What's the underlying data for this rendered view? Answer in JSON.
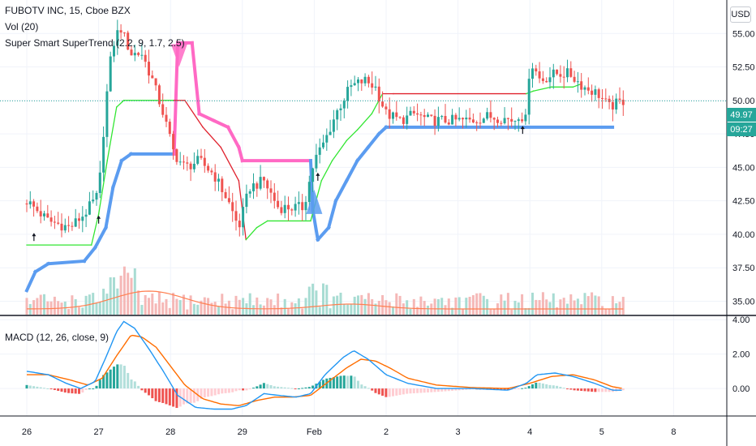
{
  "header": {
    "symbol_line": "FUBOTV INC, 15, Cboe BZX",
    "volume_indicator": "Vol (20)",
    "supertrend_indicator": "Super Smart SuperTrend (2.2, 9, 1.7, 2.5)",
    "macd_indicator": "MACD (12, 26, close, 9)"
  },
  "currency_button": "USD",
  "last_price_tag": {
    "price": "49.97",
    "countdown": "09:27"
  },
  "colors": {
    "up": "#26a69a",
    "down": "#ef5350",
    "supertrend_fast_up": "#32e632",
    "supertrend_fast_down": "#e0222e",
    "supertrend_slow_up": "#5b9cf0",
    "supertrend_slow_down": "#ff69c4",
    "macd_line": "#2196f3",
    "signal_line": "#ff6d00",
    "volume_ma": "#ff7f50",
    "price_tag_bg": "#26a69a"
  },
  "chart_data": [
    {
      "type": "candlestick",
      "pane": "price",
      "x_ticks": [
        "26",
        "27",
        "28",
        "29",
        "Feb",
        "2",
        "3",
        "4",
        "5",
        "8"
      ],
      "y_ticks": [
        35.0,
        37.5,
        40.0,
        42.5,
        45.0,
        47.5,
        50.0,
        52.5,
        55.0
      ],
      "y_tick_labels": [
        "35.00",
        "37.50",
        "40.00",
        "42.50",
        "45.00",
        "47.50",
        "50.00",
        "52.50",
        "55.00"
      ],
      "ylim": [
        34.0,
        57.5
      ],
      "close_path": [
        {
          "x": 0.0,
          "y": 42.5
        },
        {
          "x": 0.3,
          "y": 41.0
        },
        {
          "x": 0.6,
          "y": 40.5
        },
        {
          "x": 0.8,
          "y": 41.5
        },
        {
          "x": 1.0,
          "y": 43.0
        },
        {
          "x": 1.08,
          "y": 48.5
        },
        {
          "x": 1.15,
          "y": 52.5
        },
        {
          "x": 1.22,
          "y": 54.5
        },
        {
          "x": 1.3,
          "y": 55.5
        },
        {
          "x": 1.45,
          "y": 53.5
        },
        {
          "x": 1.6,
          "y": 53.5
        },
        {
          "x": 1.75,
          "y": 51.5
        },
        {
          "x": 1.9,
          "y": 49.0
        },
        {
          "x": 2.05,
          "y": 46.0
        },
        {
          "x": 2.2,
          "y": 45.0
        },
        {
          "x": 2.4,
          "y": 45.5
        },
        {
          "x": 2.6,
          "y": 44.5
        },
        {
          "x": 2.8,
          "y": 42.5
        },
        {
          "x": 2.95,
          "y": 40.5
        },
        {
          "x": 3.1,
          "y": 43.5
        },
        {
          "x": 3.3,
          "y": 44.0
        },
        {
          "x": 3.5,
          "y": 42.0
        },
        {
          "x": 3.7,
          "y": 42.0
        },
        {
          "x": 3.85,
          "y": 42.0
        },
        {
          "x": 4.0,
          "y": 45.5
        },
        {
          "x": 4.15,
          "y": 47.0
        },
        {
          "x": 4.3,
          "y": 49.0
        },
        {
          "x": 4.5,
          "y": 51.0
        },
        {
          "x": 4.7,
          "y": 51.5
        },
        {
          "x": 4.85,
          "y": 51.0
        },
        {
          "x": 5.0,
          "y": 49.0
        },
        {
          "x": 5.2,
          "y": 48.5
        },
        {
          "x": 5.4,
          "y": 49.0
        },
        {
          "x": 5.6,
          "y": 48.5
        },
        {
          "x": 5.8,
          "y": 48.5
        },
        {
          "x": 6.0,
          "y": 48.5
        },
        {
          "x": 6.2,
          "y": 48.5
        },
        {
          "x": 6.4,
          "y": 48.8
        },
        {
          "x": 6.6,
          "y": 48.7
        },
        {
          "x": 6.78,
          "y": 48.5
        },
        {
          "x": 6.85,
          "y": 49.0
        },
        {
          "x": 6.95,
          "y": 48.5
        },
        {
          "x": 7.0,
          "y": 53.0
        },
        {
          "x": 7.15,
          "y": 51.5
        },
        {
          "x": 7.35,
          "y": 52.0
        },
        {
          "x": 7.55,
          "y": 52.0
        },
        {
          "x": 7.75,
          "y": 51.0
        },
        {
          "x": 7.95,
          "y": 50.5
        },
        {
          "x": 8.1,
          "y": 49.5
        },
        {
          "x": 8.3,
          "y": 49.97
        }
      ],
      "supertrend_fast": [
        {
          "x": 0.0,
          "y": 39.2
        },
        {
          "x": 0.9,
          "y": 39.2
        },
        {
          "x": 1.0,
          "y": 41.5
        },
        {
          "x": 1.12,
          "y": 45.5
        },
        {
          "x": 1.25,
          "y": 49.5
        },
        {
          "x": 1.35,
          "y": 50.0
        },
        {
          "x": 2.05,
          "y": 50.0
        },
        {
          "x": 2.2,
          "y": 50.0
        },
        {
          "x": 2.45,
          "y": 48.0
        },
        {
          "x": 2.7,
          "y": 46.5
        },
        {
          "x": 2.95,
          "y": 44.0
        },
        {
          "x": 3.05,
          "y": 39.6
        },
        {
          "x": 3.2,
          "y": 40.5
        },
        {
          "x": 3.35,
          "y": 41.0
        },
        {
          "x": 3.95,
          "y": 41.0
        },
        {
          "x": 4.1,
          "y": 44.0
        },
        {
          "x": 4.25,
          "y": 45.5
        },
        {
          "x": 4.45,
          "y": 47.0
        },
        {
          "x": 4.6,
          "y": 47.8
        },
        {
          "x": 4.8,
          "y": 49.0
        },
        {
          "x": 4.95,
          "y": 50.5
        },
        {
          "x": 5.1,
          "y": 50.5
        },
        {
          "x": 6.95,
          "y": 50.5
        },
        {
          "x": 7.05,
          "y": 50.7
        },
        {
          "x": 7.3,
          "y": 51.0
        },
        {
          "x": 7.6,
          "y": 51.0
        },
        {
          "x": 7.7,
          "y": 51.2
        }
      ],
      "supertrend_slow": [
        {
          "x": 0.0,
          "y": 35.8
        },
        {
          "x": 0.12,
          "y": 37.2
        },
        {
          "x": 0.3,
          "y": 37.8
        },
        {
          "x": 0.8,
          "y": 38.0
        },
        {
          "x": 0.95,
          "y": 39.0
        },
        {
          "x": 1.1,
          "y": 40.5
        },
        {
          "x": 1.2,
          "y": 43.5
        },
        {
          "x": 1.32,
          "y": 45.5
        },
        {
          "x": 1.45,
          "y": 46.0
        },
        {
          "x": 2.05,
          "y": 46.0
        },
        {
          "x": 2.1,
          "y": 54.3
        },
        {
          "x": 2.3,
          "y": 54.3
        },
        {
          "x": 2.4,
          "y": 49.0
        },
        {
          "x": 2.6,
          "y": 48.5
        },
        {
          "x": 2.8,
          "y": 48.0
        },
        {
          "x": 2.95,
          "y": 46.5
        },
        {
          "x": 3.0,
          "y": 45.5
        },
        {
          "x": 3.95,
          "y": 45.5
        },
        {
          "x": 3.98,
          "y": 41.8
        },
        {
          "x": 4.05,
          "y": 39.6
        },
        {
          "x": 4.2,
          "y": 40.5
        },
        {
          "x": 4.3,
          "y": 42.5
        },
        {
          "x": 4.45,
          "y": 44.0
        },
        {
          "x": 4.6,
          "y": 45.5
        },
        {
          "x": 4.75,
          "y": 46.5
        },
        {
          "x": 4.9,
          "y": 47.5
        },
        {
          "x": 5.0,
          "y": 48.0
        },
        {
          "x": 8.15,
          "y": 48.0
        }
      ],
      "supertrend_flip_markers": [
        {
          "x": 2.12,
          "y": 52.5,
          "direction": "down"
        },
        {
          "x": 4.0,
          "y": 42.0,
          "direction": "up"
        }
      ],
      "arrows": [
        {
          "x": 0.1,
          "y": 39.5
        },
        {
          "x": 1.0,
          "y": 40.8
        },
        {
          "x": 4.05,
          "y": 44.0
        },
        {
          "x": 6.9,
          "y": 47.5
        }
      ],
      "grid": true
    },
    {
      "type": "histogram+line",
      "pane": "macd",
      "y_ticks": [
        0.0,
        2.0,
        4.0
      ],
      "y_tick_labels": [
        "0.00",
        "2.00",
        "4.00"
      ],
      "ylim": [
        -1.6,
        4.2
      ],
      "macd_line": [
        {
          "x": 0.0,
          "y": 1.0
        },
        {
          "x": 0.3,
          "y": 0.8
        },
        {
          "x": 0.55,
          "y": 0.3
        },
        {
          "x": 0.75,
          "y": 0.0
        },
        {
          "x": 0.95,
          "y": 0.4
        },
        {
          "x": 1.1,
          "y": 1.8
        },
        {
          "x": 1.25,
          "y": 3.3
        },
        {
          "x": 1.35,
          "y": 3.9
        },
        {
          "x": 1.5,
          "y": 3.5
        },
        {
          "x": 1.7,
          "y": 2.3
        },
        {
          "x": 1.9,
          "y": 1.0
        },
        {
          "x": 2.1,
          "y": -0.4
        },
        {
          "x": 2.35,
          "y": -1.1
        },
        {
          "x": 2.6,
          "y": -1.2
        },
        {
          "x": 2.85,
          "y": -1.2
        },
        {
          "x": 3.05,
          "y": -1.0
        },
        {
          "x": 3.3,
          "y": -0.3
        },
        {
          "x": 3.5,
          "y": -0.4
        },
        {
          "x": 3.75,
          "y": -0.5
        },
        {
          "x": 3.95,
          "y": -0.3
        },
        {
          "x": 4.15,
          "y": 0.8
        },
        {
          "x": 4.4,
          "y": 1.8
        },
        {
          "x": 4.55,
          "y": 2.2
        },
        {
          "x": 4.75,
          "y": 1.7
        },
        {
          "x": 5.0,
          "y": 0.8
        },
        {
          "x": 5.3,
          "y": 0.3
        },
        {
          "x": 5.7,
          "y": 0.0
        },
        {
          "x": 6.2,
          "y": 0.0
        },
        {
          "x": 6.7,
          "y": -0.1
        },
        {
          "x": 6.95,
          "y": 0.3
        },
        {
          "x": 7.1,
          "y": 0.8
        },
        {
          "x": 7.35,
          "y": 0.9
        },
        {
          "x": 7.6,
          "y": 0.7
        },
        {
          "x": 7.9,
          "y": 0.3
        },
        {
          "x": 8.15,
          "y": -0.1
        },
        {
          "x": 8.3,
          "y": -0.1
        }
      ],
      "signal_line": [
        {
          "x": 0.0,
          "y": 0.8
        },
        {
          "x": 0.3,
          "y": 0.8
        },
        {
          "x": 0.6,
          "y": 0.5
        },
        {
          "x": 0.85,
          "y": 0.2
        },
        {
          "x": 1.05,
          "y": 0.6
        },
        {
          "x": 1.25,
          "y": 1.9
        },
        {
          "x": 1.45,
          "y": 3.1
        },
        {
          "x": 1.6,
          "y": 3.0
        },
        {
          "x": 1.8,
          "y": 2.4
        },
        {
          "x": 2.0,
          "y": 1.3
        },
        {
          "x": 2.2,
          "y": 0.2
        },
        {
          "x": 2.45,
          "y": -0.6
        },
        {
          "x": 2.7,
          "y": -0.9
        },
        {
          "x": 2.95,
          "y": -1.0
        },
        {
          "x": 3.2,
          "y": -0.7
        },
        {
          "x": 3.45,
          "y": -0.5
        },
        {
          "x": 3.7,
          "y": -0.5
        },
        {
          "x": 3.95,
          "y": -0.4
        },
        {
          "x": 4.2,
          "y": 0.4
        },
        {
          "x": 4.45,
          "y": 1.2
        },
        {
          "x": 4.65,
          "y": 1.7
        },
        {
          "x": 4.85,
          "y": 1.6
        },
        {
          "x": 5.05,
          "y": 1.2
        },
        {
          "x": 5.3,
          "y": 0.6
        },
        {
          "x": 5.7,
          "y": 0.2
        },
        {
          "x": 6.2,
          "y": 0.05
        },
        {
          "x": 6.7,
          "y": 0.0
        },
        {
          "x": 7.0,
          "y": 0.3
        },
        {
          "x": 7.3,
          "y": 0.7
        },
        {
          "x": 7.6,
          "y": 0.8
        },
        {
          "x": 7.9,
          "y": 0.5
        },
        {
          "x": 8.15,
          "y": 0.1
        },
        {
          "x": 8.3,
          "y": 0.0
        }
      ],
      "grid": true
    }
  ]
}
